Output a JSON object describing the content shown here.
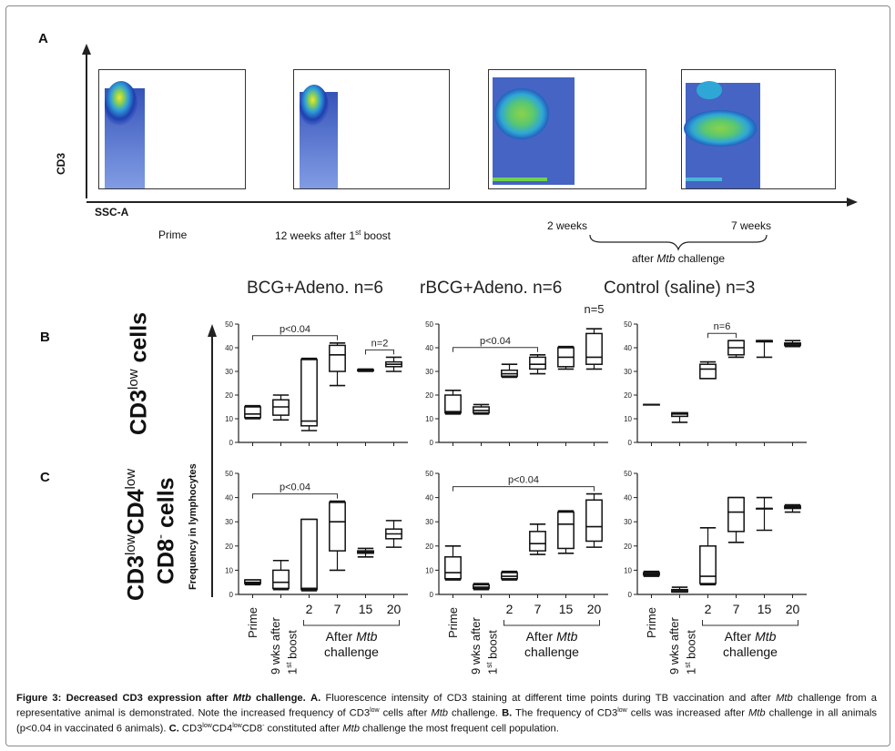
{
  "panel_a": {
    "letter": "A",
    "y_axis_label": "CD3",
    "x_axis_label": "SSC-A",
    "time_labels": {
      "prime": "Prime",
      "boost_prefix": "12 weeks after 1",
      "boost_sup": "st",
      "boost_suffix": " boost",
      "week2": "2 weeks",
      "week7": "7 weeks",
      "after_prefix": "after ",
      "after_italic": "Mtb",
      "after_suffix": " challenge"
    }
  },
  "group_titles": [
    "BCG+Adeno. n=6",
    "rBCG+Adeno. n=6",
    "Control (saline) n=3"
  ],
  "panel_b": {
    "letter": "B"
  },
  "panel_c": {
    "letter": "C"
  },
  "row_labels": {
    "b_main": "CD3",
    "b_sup": "low",
    "b_tail": " cells",
    "c_main1": "CD3",
    "c_sup1": "low",
    "c_main2": "CD4",
    "c_sup2": "low",
    "c_main3": "CD8",
    "c_sup3": "-",
    "c_tail": " cells"
  },
  "y_axis_title": "Frequency in lymphocytes",
  "x_categories": [
    "Prime",
    "9 wks after 1st boost",
    "2",
    "7",
    "15",
    "20"
  ],
  "x_labels": {
    "prime": "Prime",
    "nine_wks": "9 wks after",
    "first_prefix": "1",
    "first_sup": "st",
    "first_suffix": " boost",
    "after_prefix": "After ",
    "after_italic": "Mtb",
    "challenge": "challenge"
  },
  "chart_data": [
    {
      "type": "box",
      "panel": "B",
      "group": "BCG+Adeno. n=6",
      "categories": [
        "Prime",
        "9 wks after 1st boost",
        "2",
        "7",
        "15",
        "20"
      ],
      "ylim": [
        0,
        50
      ],
      "yticks": [
        0,
        10,
        20,
        30,
        40,
        50
      ],
      "boxes": [
        {
          "min": 10,
          "q1": 10.5,
          "median": 12,
          "q3": 15,
          "max": 15.5
        },
        {
          "min": 9.5,
          "q1": 11.5,
          "median": 15,
          "q3": 18,
          "max": 20
        },
        {
          "min": 5,
          "q1": 7,
          "median": 9,
          "q3": 35,
          "max": 35.5
        },
        {
          "min": 24,
          "q1": 30,
          "median": 37,
          "q3": 41,
          "max": 42
        },
        {
          "min": 30,
          "q1": 30.3,
          "median": 30.5,
          "q3": 30.7,
          "max": 31
        },
        {
          "min": 30,
          "q1": 32,
          "median": 33,
          "q3": 34,
          "max": 36
        }
      ],
      "annotations": [
        {
          "text": "p<0.04",
          "from": 0,
          "to": 3
        },
        {
          "text": "n=2",
          "from": 4,
          "to": 5
        }
      ]
    },
    {
      "type": "box",
      "panel": "B",
      "group": "rBCG+Adeno. n=6",
      "categories": [
        "Prime",
        "9 wks after 1st boost",
        "2",
        "7",
        "15",
        "20"
      ],
      "ylim": [
        0,
        50
      ],
      "yticks": [
        0,
        10,
        20,
        30,
        40,
        50
      ],
      "boxes": [
        {
          "min": 12,
          "q1": 12.5,
          "median": 13,
          "q3": 20,
          "max": 22
        },
        {
          "min": 12,
          "q1": 12.5,
          "median": 13.5,
          "q3": 15,
          "max": 16
        },
        {
          "min": 27.5,
          "q1": 28,
          "median": 29,
          "q3": 30.5,
          "max": 33
        },
        {
          "min": 29,
          "q1": 31,
          "median": 33,
          "q3": 36,
          "max": 37
        },
        {
          "min": 31,
          "q1": 32,
          "median": 36,
          "q3": 40,
          "max": 40.5
        },
        {
          "min": 31,
          "q1": 33,
          "median": 36,
          "q3": 46,
          "max": 48
        }
      ],
      "annotations": [
        {
          "text": "p<0.04",
          "from": 0,
          "to": 3
        },
        {
          "text": "n=5",
          "at": 5
        }
      ]
    },
    {
      "type": "box",
      "panel": "B",
      "group": "Control (saline) n=3",
      "categories": [
        "Prime",
        "9 wks after 1st boost",
        "2",
        "7",
        "15",
        "20"
      ],
      "ylim": [
        0,
        50
      ],
      "yticks": [
        0,
        10,
        20,
        30,
        40,
        50
      ],
      "boxes": [
        {
          "min": 16,
          "q1": 16,
          "median": 16,
          "q3": 16,
          "max": 16
        },
        {
          "min": 8.5,
          "q1": 11,
          "median": 12,
          "q3": 12.5,
          "max": 12.5
        },
        {
          "min": 27,
          "q1": 27,
          "median": 31,
          "q3": 33,
          "max": 34
        },
        {
          "min": 36,
          "q1": 37,
          "median": 40,
          "q3": 43,
          "max": 43
        },
        {
          "min": 36,
          "q1": 42.5,
          "median": 43,
          "q3": 43,
          "max": 43
        },
        {
          "min": 40.5,
          "q1": 41,
          "median": 41.5,
          "q3": 42,
          "max": 43
        }
      ],
      "annotations": [
        {
          "text": "n=6",
          "from": 2,
          "to": 3
        }
      ]
    },
    {
      "type": "box",
      "panel": "C",
      "group": "BCG+Adeno. n=6",
      "categories": [
        "Prime",
        "9 wks after 1st boost",
        "2",
        "7",
        "15",
        "20"
      ],
      "ylim": [
        0,
        50
      ],
      "yticks": [
        0,
        10,
        20,
        30,
        40,
        50
      ],
      "boxes": [
        {
          "min": 4,
          "q1": 4.5,
          "median": 5,
          "q3": 6,
          "max": 6
        },
        {
          "min": 2,
          "q1": 2.5,
          "median": 5,
          "q3": 10,
          "max": 14
        },
        {
          "min": 1.5,
          "q1": 2,
          "median": 2.5,
          "q3": 31,
          "max": 31
        },
        {
          "min": 10,
          "q1": 18,
          "median": 30,
          "q3": 38,
          "max": 38.5
        },
        {
          "min": 15.5,
          "q1": 17,
          "median": 17.5,
          "q3": 18,
          "max": 19
        },
        {
          "min": 19.5,
          "q1": 23,
          "median": 25,
          "q3": 27,
          "max": 30.5
        }
      ],
      "annotations": [
        {
          "text": "p<0.04",
          "from": 0,
          "to": 3
        }
      ]
    },
    {
      "type": "box",
      "panel": "C",
      "group": "rBCG+Adeno. n=6",
      "categories": [
        "Prime",
        "9 wks after 1st boost",
        "2",
        "7",
        "15",
        "20"
      ],
      "ylim": [
        0,
        50
      ],
      "yticks": [
        0,
        10,
        20,
        30,
        40,
        50
      ],
      "boxes": [
        {
          "min": 6,
          "q1": 6.5,
          "median": 9,
          "q3": 15.5,
          "max": 20
        },
        {
          "min": 2,
          "q1": 2.5,
          "median": 3,
          "q3": 4,
          "max": 4.5
        },
        {
          "min": 6,
          "q1": 6.5,
          "median": 7.5,
          "q3": 9,
          "max": 9.5
        },
        {
          "min": 16.5,
          "q1": 18,
          "median": 21,
          "q3": 26,
          "max": 29
        },
        {
          "min": 17,
          "q1": 19,
          "median": 29,
          "q3": 34,
          "max": 34.5
        },
        {
          "min": 19.5,
          "q1": 22,
          "median": 28,
          "q3": 39,
          "max": 41.5
        }
      ],
      "annotations": [
        {
          "text": "p<0.04",
          "from": 0,
          "to": 5
        }
      ]
    },
    {
      "type": "box",
      "panel": "C",
      "group": "Control (saline) n=3",
      "categories": [
        "Prime",
        "9 wks after 1st boost",
        "2",
        "7",
        "15",
        "20"
      ],
      "ylim": [
        0,
        50
      ],
      "yticks": [
        0,
        10,
        20,
        30,
        40,
        50
      ],
      "boxes": [
        {
          "min": 7.5,
          "q1": 8,
          "median": 8.5,
          "q3": 9,
          "max": 9.5
        },
        {
          "min": 1,
          "q1": 1,
          "median": 1.5,
          "q3": 2,
          "max": 3
        },
        {
          "min": 4,
          "q1": 4.5,
          "median": 7.5,
          "q3": 20,
          "max": 27.5
        },
        {
          "min": 21.5,
          "q1": 26,
          "median": 34,
          "q3": 40,
          "max": 40
        },
        {
          "min": 26.5,
          "q1": 35.5,
          "median": 35.5,
          "q3": 35.5,
          "max": 40
        },
        {
          "min": 34,
          "q1": 35.5,
          "median": 36,
          "q3": 36.5,
          "max": 37
        }
      ],
      "annotations": []
    }
  ],
  "caption": {
    "title": "Figure 3: Decreased CD3 expression after ",
    "title_italic": "Mtb",
    "title_end": " challenge.",
    "a_letter": "A.",
    "a_text1": " Fluorescence intensity of CD3 staining at different time points during TB vaccination and after ",
    "a_italic": "Mtb",
    "a_text2": " challenge from a representative animal is demonstrated. Note the increased frequency of CD3",
    "a_sup": "low",
    "a_text3": " cells after ",
    "a_italic2": "Mtb",
    "a_text4": " challenge.",
    "b_letter": "B.",
    "b_text1": " The frequency of CD3",
    "b_sup": "low",
    "b_text2": " cells was increased after ",
    "b_italic": "Mtb",
    "b_text3": " challenge in all animals (p<0.04 in vaccinated 6 animals).",
    "c_letter": "C.",
    "c_text1": " CD3",
    "c_sup1": "low",
    "c_text2": "CD4",
    "c_sup2": "low",
    "c_text3": "CD8",
    "c_sup3": "-",
    "c_text4": " constituted after ",
    "c_italic": "Mtb",
    "c_text5": " challenge the most frequent cell population."
  }
}
